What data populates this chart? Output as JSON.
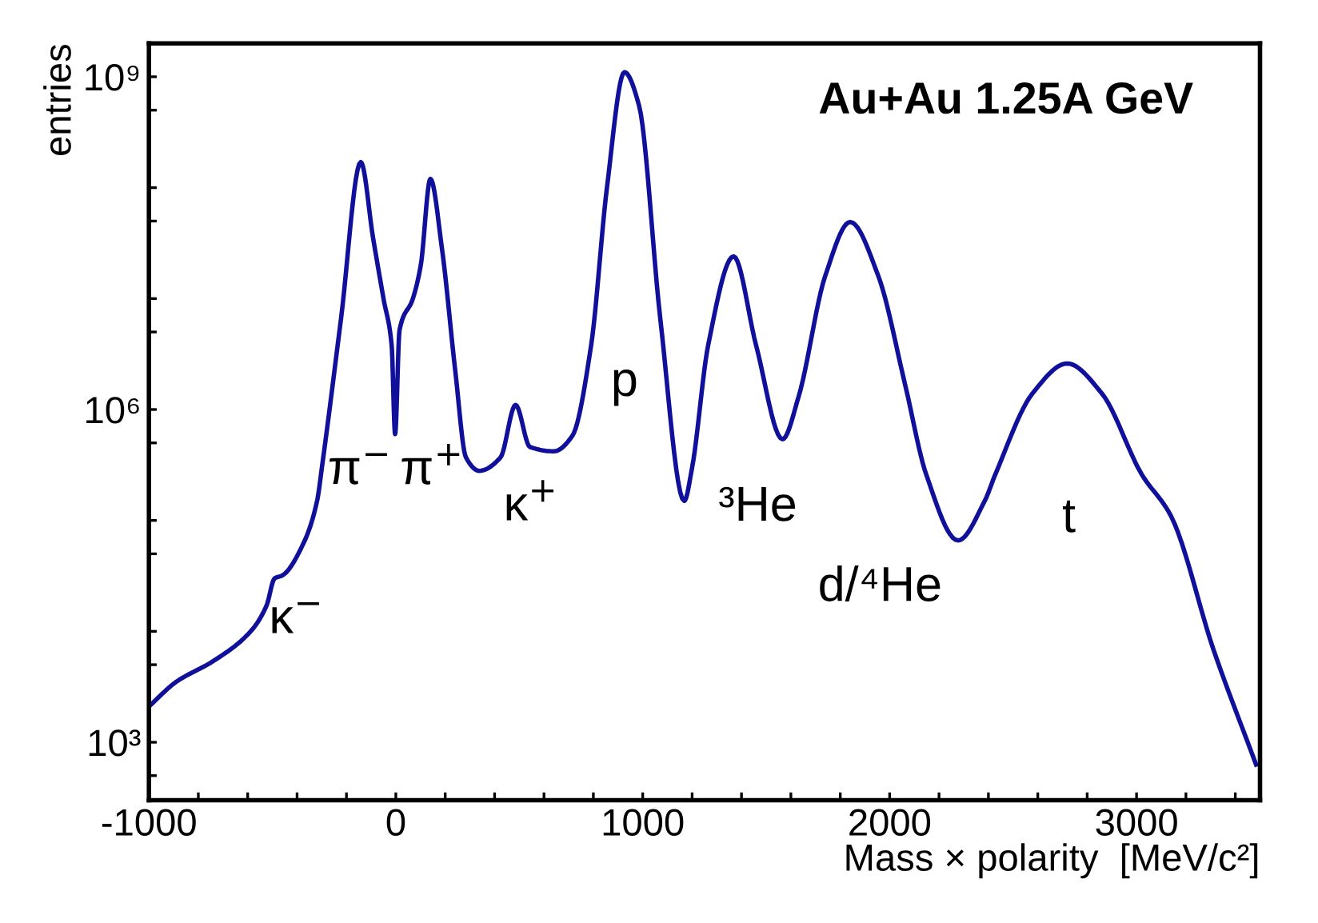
{
  "chart_data": {
    "type": "line",
    "title": "Au+Au 1.25A GeV",
    "xlabel": "Mass × polarity  [MeV/c²]",
    "ylabel": "entries",
    "log": "y",
    "grid": false,
    "marker": "none",
    "line_style": "solid",
    "xlim": [
      -1000,
      3500
    ],
    "ylim": [
      300,
      2000000000
    ],
    "xticks": [
      -1000,
      {
        "value": -800,
        "label": null
      },
      {
        "value": -600,
        "label": null
      },
      {
        "value": -400,
        "label": null
      },
      {
        "value": -200,
        "label": null
      },
      0,
      {
        "value": 200,
        "label": null
      },
      {
        "value": 400,
        "label": null
      },
      {
        "value": 600,
        "label": null
      },
      {
        "value": 800,
        "label": null
      },
      1000,
      {
        "value": 1200,
        "label": null
      },
      {
        "value": 1400,
        "label": null
      },
      {
        "value": 1600,
        "label": null
      },
      {
        "value": 1800,
        "label": null
      },
      2000,
      {
        "value": 2200,
        "label": null
      },
      {
        "value": 2400,
        "label": null
      },
      {
        "value": 2600,
        "label": null
      },
      {
        "value": 2800,
        "label": null
      },
      3000,
      {
        "value": 3200,
        "label": null
      },
      {
        "value": 3400,
        "label": null
      }
    ],
    "yticks": [
      {
        "value": 500,
        "label": null
      },
      {
        "value": 1000,
        "label": "10³"
      },
      {
        "value": 5000,
        "label": null
      },
      {
        "value": 10000,
        "label": null
      },
      {
        "value": 50000,
        "label": null
      },
      {
        "value": 100000,
        "label": null
      },
      {
        "value": 500000,
        "label": null
      },
      {
        "value": 1000000,
        "label": "10⁶"
      },
      {
        "value": 5000000,
        "label": null
      },
      {
        "value": 10000000,
        "label": null
      },
      {
        "value": 50000000,
        "label": null
      },
      {
        "value": 100000000,
        "label": null
      },
      {
        "value": 500000000,
        "label": null
      },
      {
        "value": 1000000000,
        "label": "10⁹"
      }
    ],
    "series": [
      {
        "color": "#10109a",
        "x": [
          -1000,
          -890,
          -739,
          -588,
          -524,
          -491,
          -459,
          -373,
          -319,
          -297,
          -222,
          -142,
          -92,
          -50,
          -17,
          -3,
          15,
          69,
          101,
          140,
          187,
          241,
          284,
          338,
          424,
          485,
          543,
          640,
          715,
          791,
          855,
          926,
          985,
          1071,
          1168,
          1200,
          1265,
          1368,
          1459,
          1566,
          1631,
          1739,
          1840,
          1954,
          2062,
          2148,
          2277,
          2385,
          2428,
          2579,
          2719,
          2859,
          3021,
          3139,
          3312,
          3484
        ],
        "values": [
          2100,
          3500,
          5400,
          10000,
          17000,
          30000,
          32000,
          63000,
          150000,
          330000,
          6600000,
          170000000,
          35000000,
          10000000,
          3800000,
          600000,
          5200000,
          10000000,
          20000000,
          120000000,
          28000000,
          2200000,
          370000,
          280000,
          370000,
          1100000,
          460000,
          420000,
          580000,
          3800000,
          100000000,
          1100000000,
          550000000,
          6600000,
          150000,
          300000,
          3800000,
          24000000,
          3800000,
          540000,
          1300000,
          16000000,
          49000000,
          16000000,
          1700000,
          260000,
          66000,
          150000,
          260000,
          1400000,
          2600000,
          1400000,
          260000,
          110000,
          6800,
          630
        ]
      }
    ],
    "annotations": [
      "κ$^{−}$",
      "π$^{−}$",
      "π$^{+}$",
      "κ$^{+}$",
      "p",
      "³He",
      "d/⁴He",
      "t"
    ]
  }
}
